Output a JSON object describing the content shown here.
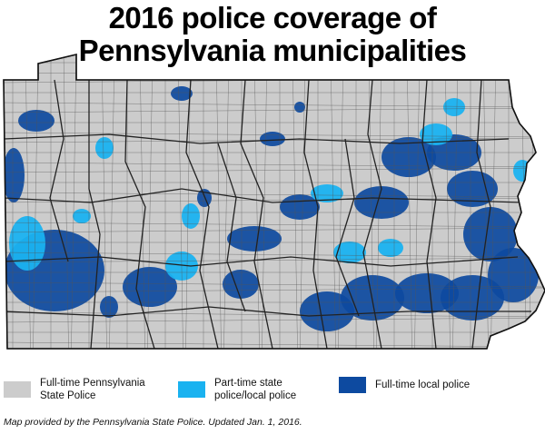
{
  "title": {
    "line1": "2016 police coverage of",
    "line2": "Pennsylvania municipalities"
  },
  "colors": {
    "state_police": "#cccccc",
    "part_time": "#1ab2f0",
    "full_time_local": "#0d4aa0",
    "border": "#222222"
  },
  "legend": [
    {
      "key": "state_police",
      "label": "Full-time Pennsylvania\nState Police"
    },
    {
      "key": "part_time",
      "label": "Part-time state\npolice/local police"
    },
    {
      "key": "full_time_local",
      "label": "Full-time local police"
    }
  ],
  "credit": "Map provided by the Pennsylvania State Police. Updated Jan. 1, 2016."
}
